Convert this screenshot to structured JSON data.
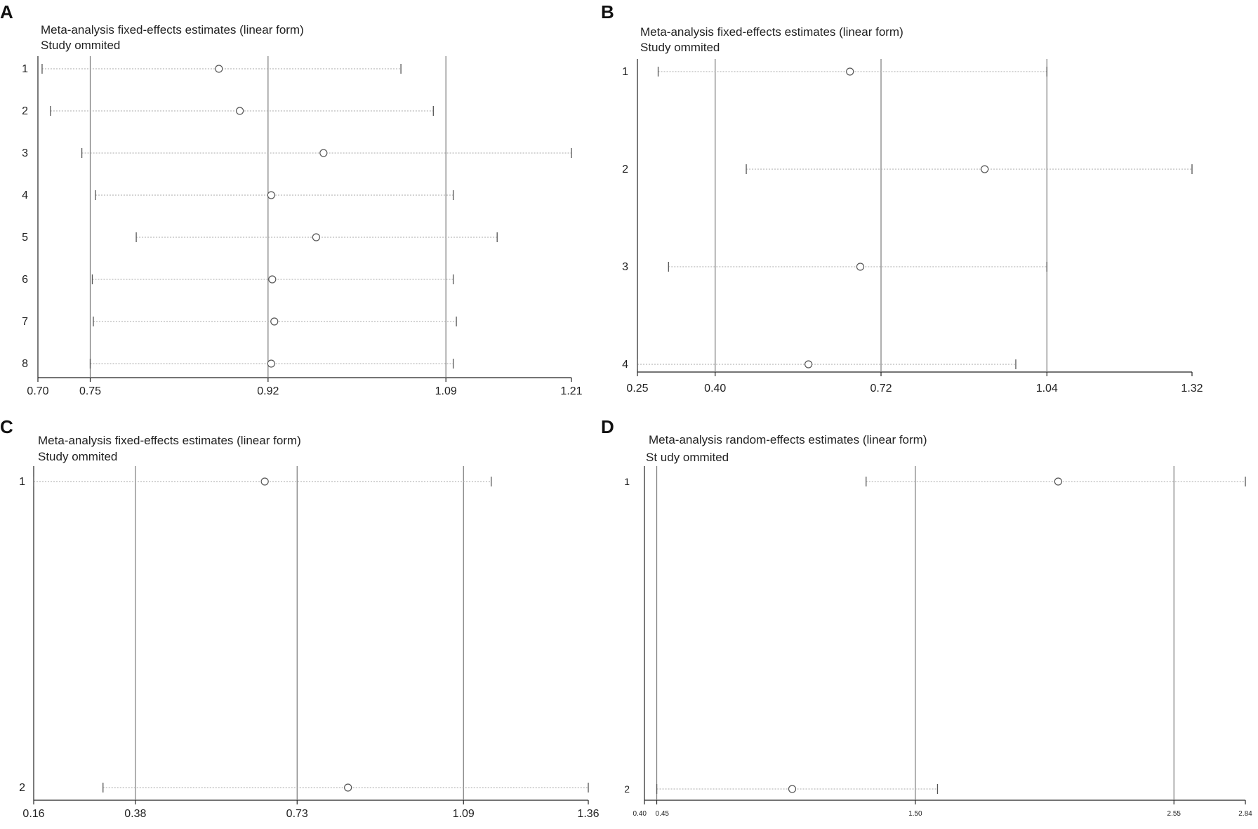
{
  "chart_data": [
    {
      "panel": "A",
      "type": "forest",
      "title": "Meta-analysis fixed-effects estimates (linear form)",
      "subtitle": "Study ommited",
      "xticks": [
        "0.70",
        "0.75",
        "0.92",
        "1.09",
        "1.21"
      ],
      "xlim": [
        0.7,
        1.21
      ],
      "reference_lines": [
        0.75,
        0.92,
        1.09
      ],
      "rows": [
        {
          "label": "1",
          "est": 0.873,
          "lo": 0.704,
          "hi": 1.047
        },
        {
          "label": "2",
          "est": 0.893,
          "lo": 0.712,
          "hi": 1.078
        },
        {
          "label": "3",
          "est": 0.973,
          "lo": 0.742,
          "hi": 1.21
        },
        {
          "label": "4",
          "est": 0.923,
          "lo": 0.755,
          "hi": 1.097
        },
        {
          "label": "5",
          "est": 0.966,
          "lo": 0.794,
          "hi": 1.139
        },
        {
          "label": "6",
          "est": 0.924,
          "lo": 0.752,
          "hi": 1.097
        },
        {
          "label": "7",
          "est": 0.926,
          "lo": 0.753,
          "hi": 1.1
        },
        {
          "label": "8",
          "est": 0.923,
          "lo": 0.75,
          "hi": 1.097
        }
      ]
    },
    {
      "panel": "B",
      "type": "forest",
      "title": "Meta-analysis fixed-effects estimates (linear form)",
      "subtitle": "Study ommited",
      "xticks": [
        "0.25",
        "0.40",
        "0.72",
        "1.04",
        "1.32"
      ],
      "xlim": [
        0.25,
        1.32
      ],
      "reference_lines": [
        0.4,
        0.72,
        1.04
      ],
      "rows": [
        {
          "label": "1",
          "est": 0.66,
          "lo": 0.29,
          "hi": 1.04
        },
        {
          "label": "2",
          "est": 0.92,
          "lo": 0.46,
          "hi": 1.32
        },
        {
          "label": "3",
          "est": 0.68,
          "lo": 0.31,
          "hi": 1.04
        },
        {
          "label": "4",
          "est": 0.58,
          "lo": 0.25,
          "hi": 0.98
        }
      ]
    },
    {
      "panel": "C",
      "type": "forest",
      "title": "Meta-analysis fixed-effects estimates (linear form)",
      "subtitle": "Study ommited",
      "xticks": [
        "0.16",
        "0.38",
        "0.73",
        "1.09",
        "1.36"
      ],
      "xlim": [
        0.16,
        1.36
      ],
      "reference_lines": [
        0.38,
        0.73,
        1.09
      ],
      "rows": [
        {
          "label": "1",
          "est": 0.66,
          "lo": 0.16,
          "hi": 1.15
        },
        {
          "label": "2",
          "est": 0.84,
          "lo": 0.31,
          "hi": 1.36
        }
      ]
    },
    {
      "panel": "D",
      "type": "forest",
      "title": "Meta-analysis random-effects estimates (linear form)",
      "subtitle": "St udy ommited",
      "xticks": [
        "0.40",
        "0.45",
        "1.50",
        "2.55",
        "2.84"
      ],
      "xlim": [
        0.4,
        2.84
      ],
      "reference_lines": [
        0.45,
        1.5,
        2.55
      ],
      "rows": [
        {
          "label": "1",
          "est": 2.08,
          "lo": 1.3,
          "hi": 2.84
        },
        {
          "label": "2",
          "est": 1.0,
          "lo": 0.45,
          "hi": 1.59
        }
      ]
    }
  ]
}
